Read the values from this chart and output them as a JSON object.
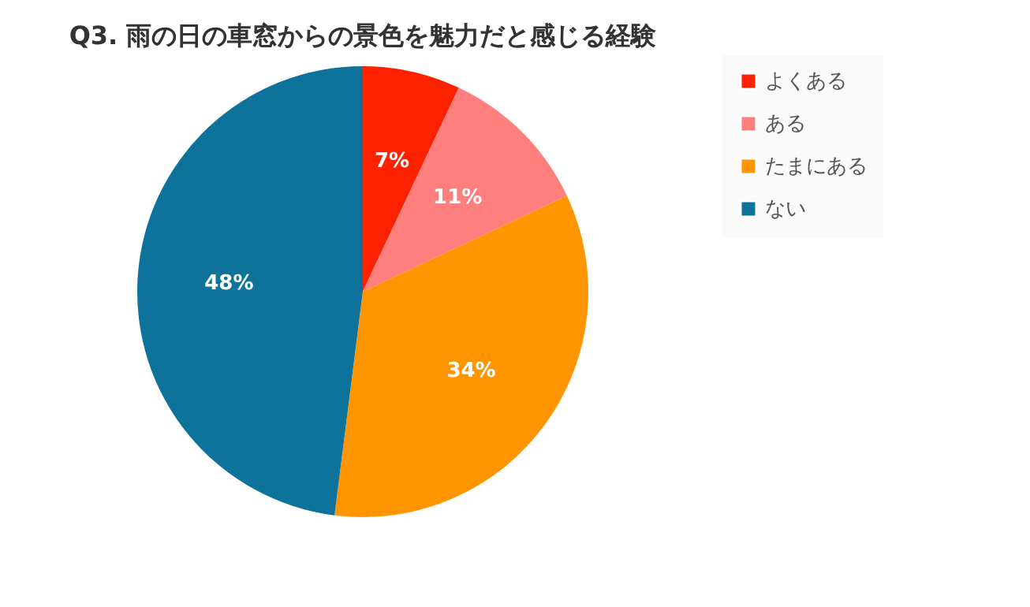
{
  "chart_data": {
    "type": "pie",
    "title": "Q3. 雨の日の車窓からの景色を魅力だと感じる経験",
    "categories": [
      "よくある",
      "ある",
      "たまにある",
      "ない"
    ],
    "values": [
      7,
      11,
      34,
      48
    ],
    "colors": [
      "#ff2200",
      "#ff7f7f",
      "#ff9500",
      "#0e739b"
    ],
    "value_labels": [
      "7%",
      "11%",
      "34%",
      "48%"
    ],
    "legend": "right"
  }
}
